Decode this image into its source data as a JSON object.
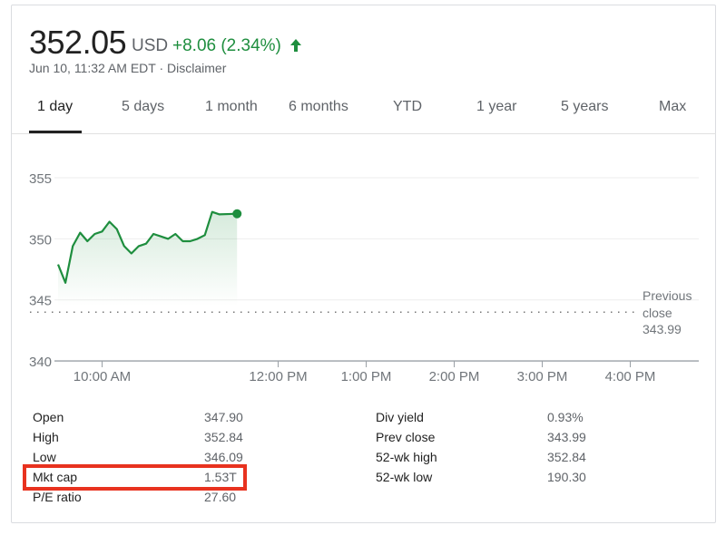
{
  "quote": {
    "price": "352.05",
    "currency": "USD",
    "change": "+8.06 (2.34%)",
    "direction_icon": "arrow-up-icon",
    "timestamp": "Jun 10, 11:32 AM EDT",
    "separator": " · ",
    "disclaimer": "Disclaimer",
    "positive_color": "#1e8e3e"
  },
  "tabs": [
    {
      "label": "1 day",
      "active": true
    },
    {
      "label": "5 days"
    },
    {
      "label": "1 month"
    },
    {
      "label": "6 months"
    },
    {
      "label": "YTD"
    },
    {
      "label": "1 year"
    },
    {
      "label": "5 years"
    },
    {
      "label": "Max"
    }
  ],
  "chart_data": {
    "type": "area",
    "line_color": "#1e8e3e",
    "ylim": [
      340,
      355
    ],
    "y_ticks": [
      "355",
      "350",
      "345",
      "340"
    ],
    "x_range": [
      "9:30 AM",
      "4:00 PM"
    ],
    "x_ticks": [
      "10:00 AM",
      "12:00 PM",
      "1:00 PM",
      "2:00 PM",
      "3:00 PM",
      "4:00 PM"
    ],
    "grid": true,
    "reference_line": {
      "label_line1": "Previous",
      "label_line2": "close",
      "value": "343.99"
    },
    "x": [
      "9:30",
      "9:35",
      "9:40",
      "9:45",
      "9:50",
      "9:55",
      "10:00",
      "10:05",
      "10:10",
      "10:15",
      "10:20",
      "10:25",
      "10:30",
      "10:35",
      "10:40",
      "10:45",
      "10:50",
      "10:55",
      "11:00",
      "11:05",
      "11:10",
      "11:15",
      "11:20",
      "11:32"
    ],
    "values": [
      347.9,
      346.4,
      349.4,
      350.5,
      349.8,
      350.4,
      350.6,
      351.4,
      350.8,
      349.4,
      348.8,
      349.4,
      349.6,
      350.4,
      350.2,
      350.0,
      350.4,
      349.8,
      349.8,
      350.0,
      350.3,
      352.2,
      352.0,
      352.05
    ]
  },
  "stats": {
    "left": [
      {
        "label": "Open",
        "value": "347.90"
      },
      {
        "label": "High",
        "value": "352.84"
      },
      {
        "label": "Low",
        "value": "346.09"
      },
      {
        "label": "Mkt cap",
        "value": "1.53T"
      },
      {
        "label": "P/E ratio",
        "value": "27.60"
      }
    ],
    "right": [
      {
        "label": "Div yield",
        "value": "0.93%"
      },
      {
        "label": "Prev close",
        "value": "343.99"
      },
      {
        "label": "52-wk high",
        "value": "352.84"
      },
      {
        "label": "52-wk low",
        "value": "190.30"
      }
    ],
    "highlight_color": "#e8321f"
  }
}
